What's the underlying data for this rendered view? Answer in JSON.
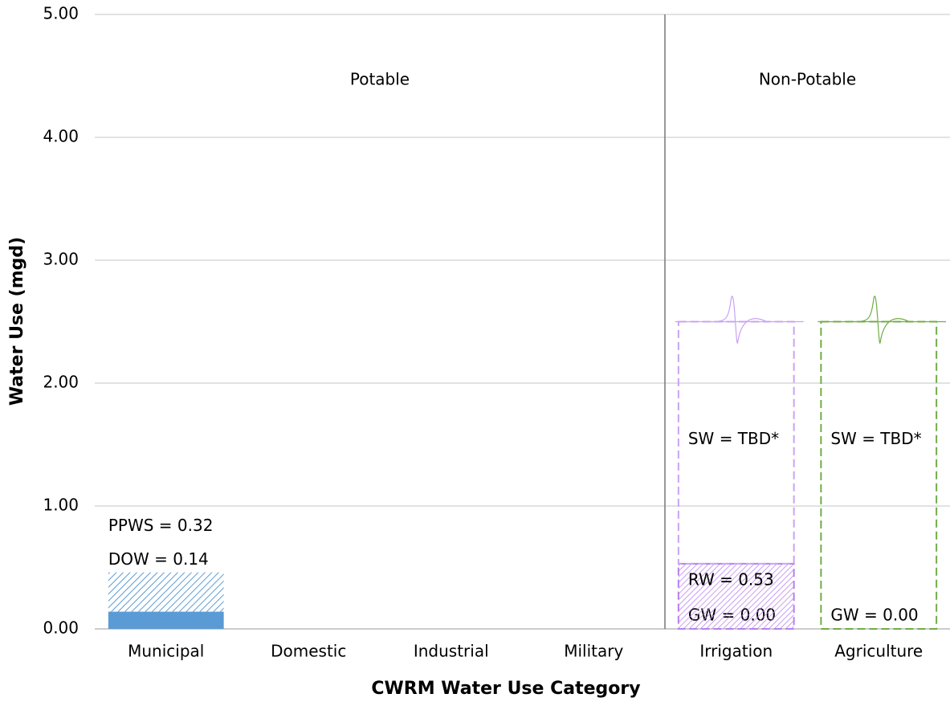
{
  "chart_data": {
    "type": "stacked-bar",
    "x_label": "CWRM Water Use Category",
    "y_label": "Water Use (mgd)",
    "section_labels": [
      "Potable",
      "Non-Potable"
    ],
    "categories": [
      "Municipal",
      "Domestic",
      "Industrial",
      "Military",
      "Irrigation",
      "Agriculture"
    ],
    "ylim": [
      0,
      5
    ],
    "yticks": [
      {
        "value": 0,
        "label": "0.00"
      },
      {
        "value": 1,
        "label": "1.00"
      },
      {
        "value": 2,
        "label": "2.00"
      },
      {
        "value": 3,
        "label": "3.00"
      },
      {
        "value": 4,
        "label": "4.00"
      },
      {
        "value": 5,
        "label": "5.00"
      }
    ],
    "grid": true,
    "series": [
      {
        "name": "DOW",
        "color": "#5b9bd5",
        "style": "solid",
        "values": [
          0.14,
          null,
          null,
          null,
          null,
          null
        ],
        "value_labels": [
          "DOW = 0.14",
          null,
          null,
          null,
          null,
          null
        ]
      },
      {
        "name": "PPWS",
        "color": "#5b9bd5",
        "style": "hatch",
        "values": [
          0.32,
          null,
          null,
          null,
          null,
          null
        ],
        "value_labels": [
          "PPWS = 0.32",
          null,
          null,
          null,
          null,
          null
        ]
      },
      {
        "name": "GW",
        "color": "#70ad47",
        "style": "solid",
        "values": [
          null,
          null,
          null,
          null,
          0,
          0
        ],
        "value_labels": [
          null,
          null,
          null,
          null,
          "GW = 0.00",
          "GW = 0.00"
        ]
      },
      {
        "name": "RW",
        "color": "#b77ff0",
        "style": "hatch",
        "values": [
          null,
          null,
          null,
          null,
          0.53,
          null
        ],
        "value_labels": [
          null,
          null,
          null,
          null,
          "RW = 0.53",
          null
        ]
      },
      {
        "name": "SW",
        "colors": [
          null,
          null,
          null,
          null,
          "#c9a3f5",
          "#70ad47"
        ],
        "style": "dashed",
        "values": [
          null,
          null,
          null,
          null,
          1.97,
          2.5
        ],
        "value_labels": [
          null,
          null,
          null,
          null,
          "SW = TBD*",
          "SW = TBD*"
        ]
      }
    ]
  }
}
